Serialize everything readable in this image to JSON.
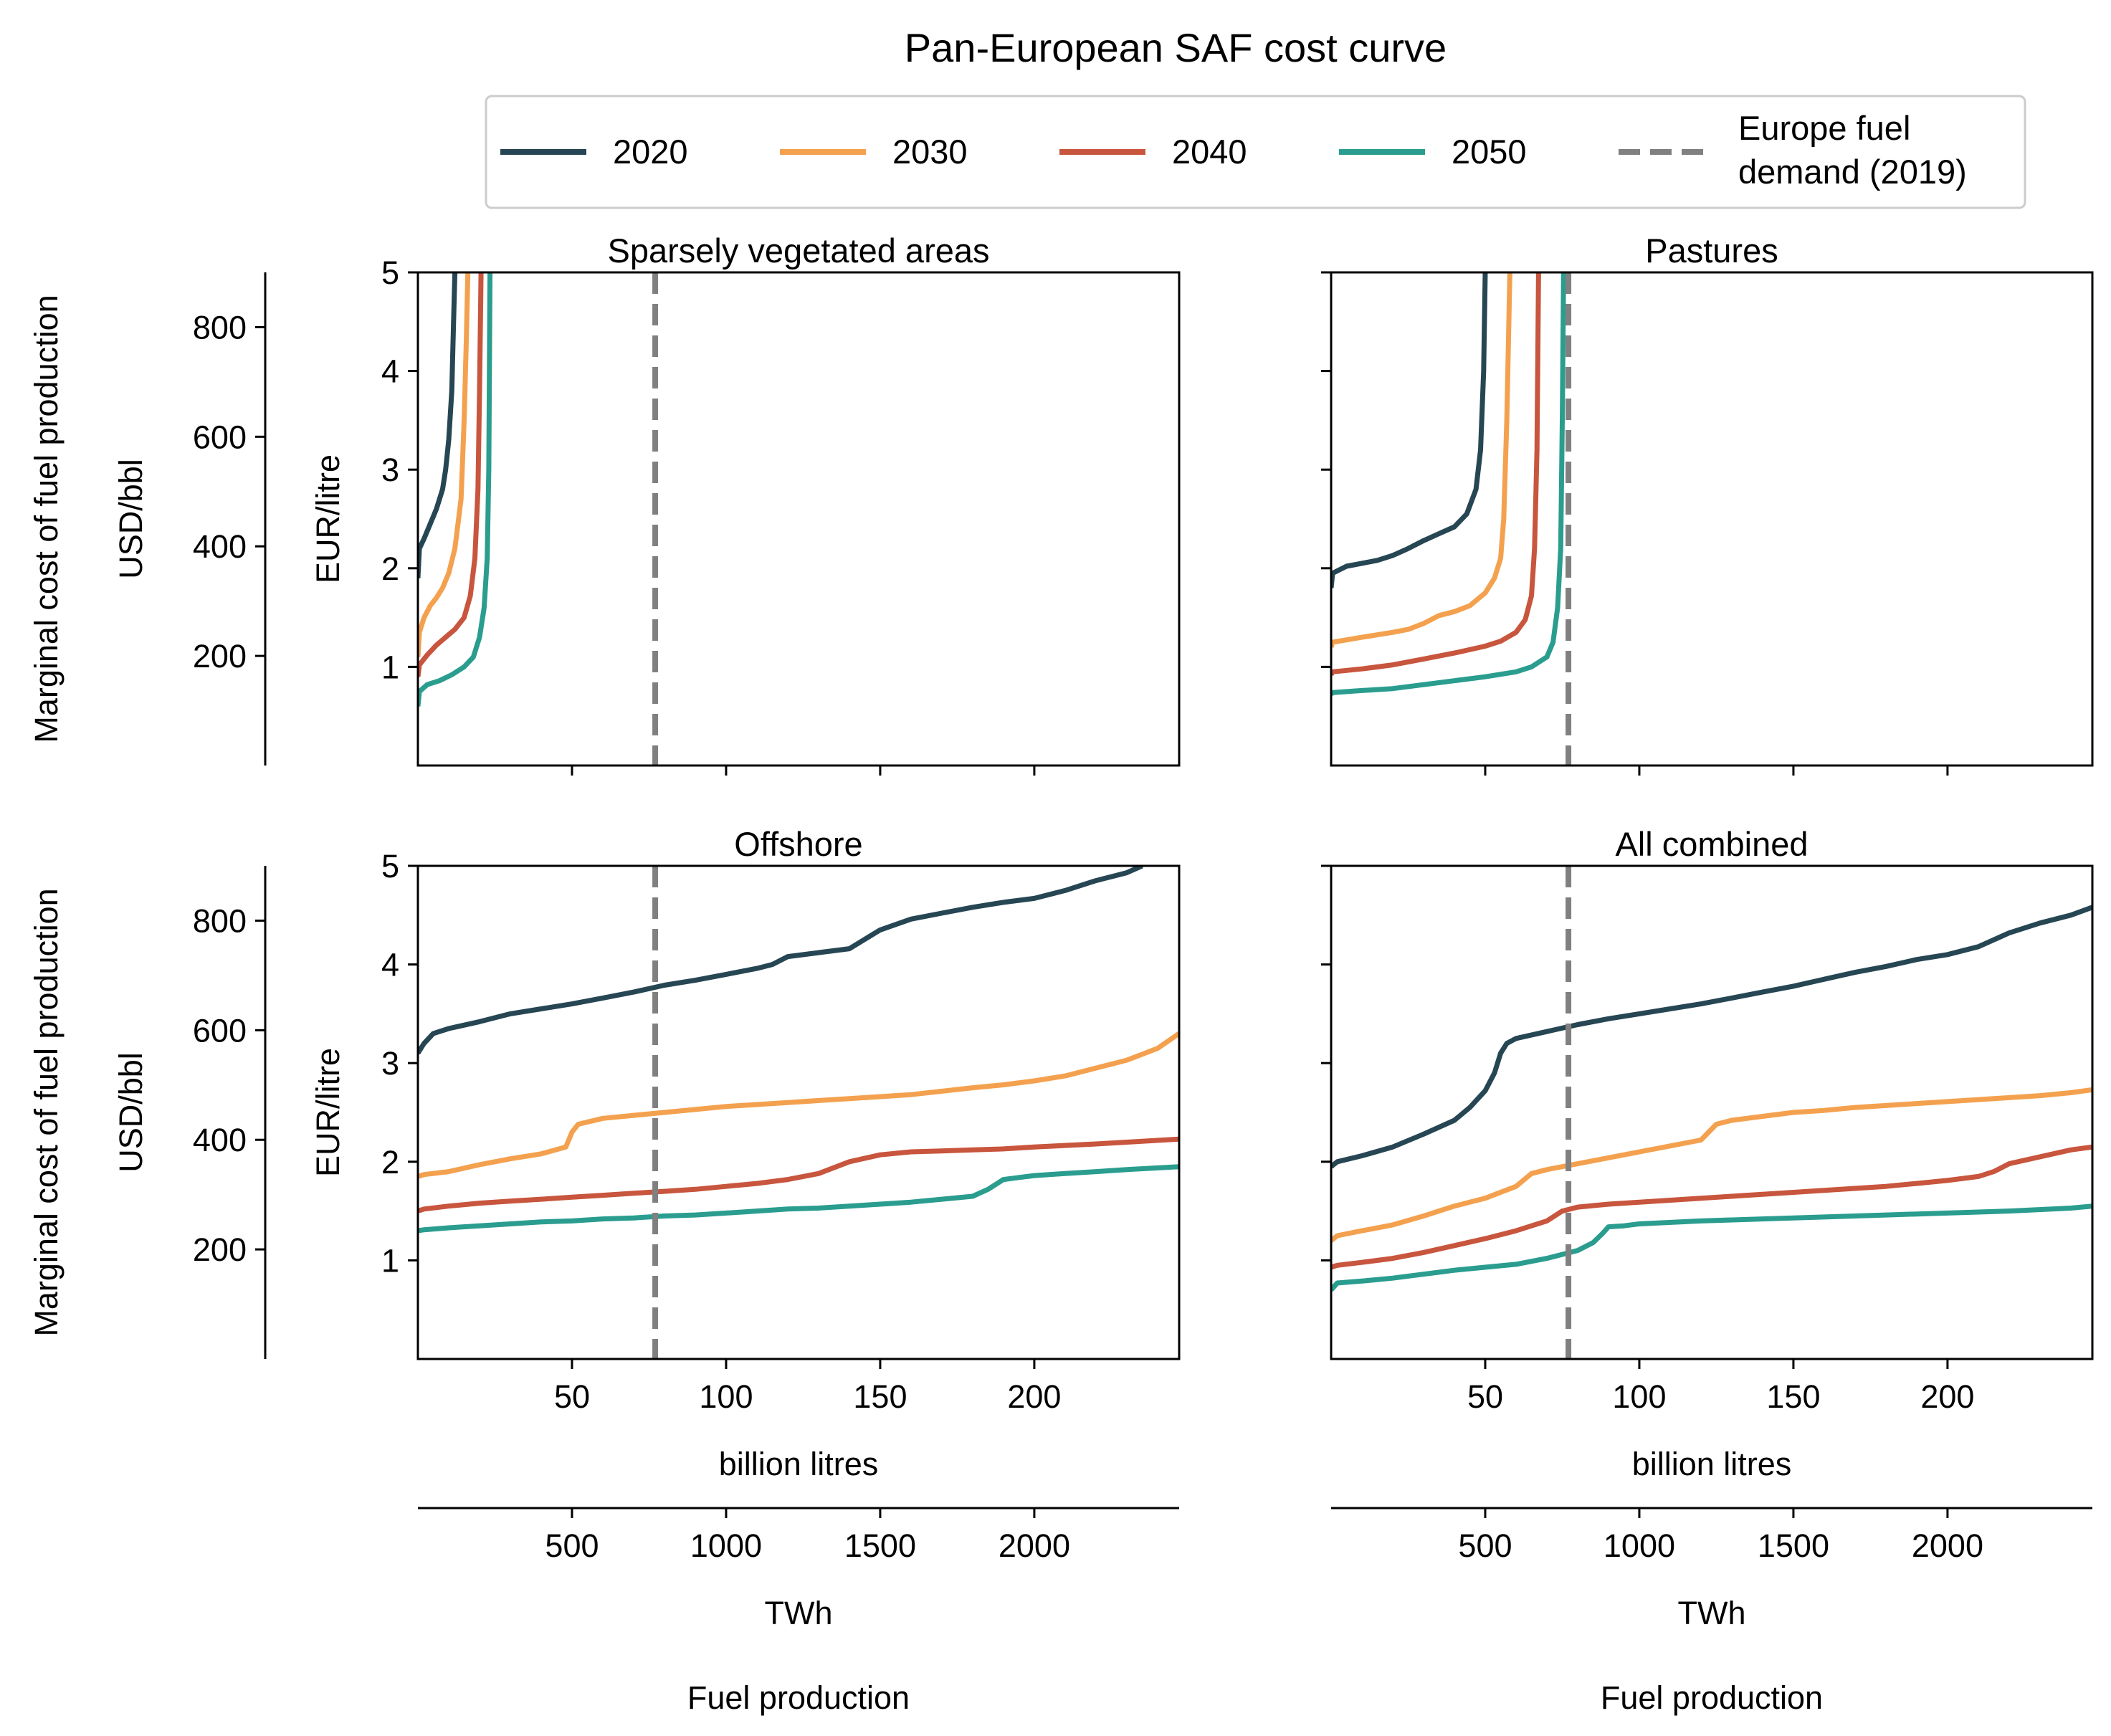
{
  "title": "Pan-European SAF cost curve",
  "colors": {
    "2020": "#264653",
    "2030": "#F4A14F",
    "2040": "#C8553D",
    "2050": "#2A9D8F",
    "demand": "#808080"
  },
  "legend": {
    "entries": [
      {
        "key": "2020",
        "label": "2020",
        "style": "solid"
      },
      {
        "key": "2030",
        "label": "2030",
        "style": "solid"
      },
      {
        "key": "2040",
        "label": "2040",
        "style": "solid"
      },
      {
        "key": "2050",
        "label": "2050",
        "style": "solid"
      },
      {
        "key": "demand",
        "label": [
          "Europe fuel",
          "demand (2019)"
        ],
        "style": "dashed"
      }
    ]
  },
  "labels": {
    "ylabel_outer": "Marginal cost of fuel production",
    "ylabel_usd": "USD/bbl",
    "ylabel_eur": "EUR/litre",
    "xlabel_litres": "billion litres",
    "xlabel_twh": "TWh",
    "xlabel_bottom": "Fuel production"
  },
  "axes": {
    "x_litres": {
      "range": [
        0,
        247
      ],
      "ticks": [
        50,
        100,
        150,
        200
      ]
    },
    "x_twh": {
      "ticks": [
        500,
        1000,
        1500,
        2000
      ]
    },
    "y_eur": {
      "range": [
        0,
        5
      ],
      "ticks": [
        1,
        2,
        3,
        4,
        5
      ]
    },
    "y_usd": {
      "range": [
        0,
        900
      ],
      "ticks": [
        200,
        400,
        600,
        800
      ]
    }
  },
  "chart_data": [
    {
      "type": "line",
      "title": "Sparsely vegetated areas",
      "demand_x": 77,
      "series": [
        {
          "name": "2020",
          "x": [
            0,
            0.5,
            2,
            4,
            6,
            8,
            9,
            10,
            11,
            11.5,
            12,
            13
          ],
          "y": [
            1.9,
            2.2,
            2.3,
            2.45,
            2.6,
            2.8,
            3.0,
            3.3,
            3.8,
            4.4,
            5.0,
            5.3
          ]
        },
        {
          "name": "2030",
          "x": [
            0,
            0.5,
            2,
            4,
            6,
            8,
            10,
            12,
            14,
            15,
            15.7,
            16.2,
            17
          ],
          "y": [
            1.1,
            1.35,
            1.5,
            1.62,
            1.7,
            1.8,
            1.95,
            2.2,
            2.7,
            3.5,
            4.3,
            5.0,
            5.3
          ]
        },
        {
          "name": "2040",
          "x": [
            0,
            0.5,
            3,
            6,
            9,
            12,
            15,
            17,
            18.5,
            19.5,
            20,
            20.5,
            21
          ],
          "y": [
            0.9,
            1.02,
            1.12,
            1.22,
            1.3,
            1.38,
            1.5,
            1.72,
            2.1,
            2.8,
            3.8,
            5.0,
            5.3
          ]
        },
        {
          "name": "2050",
          "x": [
            0,
            0.5,
            3,
            7,
            11,
            15,
            18,
            20,
            21.5,
            22.5,
            23,
            23.4,
            24
          ],
          "y": [
            0.6,
            0.75,
            0.82,
            0.86,
            0.92,
            1.0,
            1.1,
            1.3,
            1.6,
            2.1,
            3.0,
            5.0,
            5.3
          ]
        }
      ]
    },
    {
      "type": "line",
      "title": "Pastures",
      "demand_x": 77,
      "series": [
        {
          "name": "2020",
          "x": [
            0,
            0.5,
            5,
            10,
            15,
            20,
            25,
            30,
            35,
            40,
            44,
            47,
            48.5,
            49.5,
            50,
            50.5
          ],
          "y": [
            1.8,
            1.95,
            2.02,
            2.05,
            2.08,
            2.13,
            2.2,
            2.28,
            2.35,
            2.42,
            2.55,
            2.8,
            3.2,
            4.0,
            5.0,
            5.3
          ]
        },
        {
          "name": "2030",
          "x": [
            0,
            0.5,
            10,
            20,
            25,
            30,
            35,
            40,
            45,
            50,
            53,
            55,
            56,
            57,
            58,
            59
          ],
          "y": [
            1.2,
            1.25,
            1.3,
            1.35,
            1.38,
            1.44,
            1.52,
            1.56,
            1.62,
            1.75,
            1.9,
            2.1,
            2.5,
            3.5,
            5.0,
            5.3
          ]
        },
        {
          "name": "2040",
          "x": [
            0,
            0.5,
            10,
            20,
            30,
            40,
            50,
            55,
            60,
            63,
            65,
            66,
            66.8,
            67.3,
            68
          ],
          "y": [
            0.92,
            0.95,
            0.98,
            1.02,
            1.08,
            1.14,
            1.21,
            1.26,
            1.35,
            1.48,
            1.72,
            2.2,
            3.2,
            5.0,
            5.3
          ]
        },
        {
          "name": "2050",
          "x": [
            0,
            0.5,
            10,
            20,
            30,
            40,
            50,
            60,
            65,
            70,
            72,
            73.5,
            74.5,
            75,
            75.5
          ],
          "y": [
            0.72,
            0.74,
            0.76,
            0.78,
            0.82,
            0.86,
            0.9,
            0.95,
            1.0,
            1.1,
            1.25,
            1.6,
            2.2,
            3.5,
            5.2
          ]
        }
      ]
    },
    {
      "type": "line",
      "title": "Offshore",
      "demand_x": 77,
      "series": [
        {
          "name": "2020",
          "x": [
            0,
            2,
            5,
            10,
            20,
            30,
            40,
            50,
            60,
            70,
            80,
            90,
            100,
            110,
            115,
            120,
            130,
            140,
            150,
            160,
            170,
            180,
            190,
            200,
            210,
            220,
            230,
            235
          ],
          "y": [
            3.1,
            3.2,
            3.3,
            3.35,
            3.42,
            3.5,
            3.55,
            3.6,
            3.66,
            3.72,
            3.79,
            3.84,
            3.9,
            3.96,
            4.0,
            4.08,
            4.12,
            4.16,
            4.35,
            4.46,
            4.52,
            4.58,
            4.63,
            4.67,
            4.75,
            4.85,
            4.93,
            5.0
          ]
        },
        {
          "name": "2030",
          "x": [
            0,
            2,
            10,
            20,
            30,
            40,
            48,
            50,
            52,
            60,
            70,
            80,
            90,
            100,
            120,
            140,
            160,
            180,
            190,
            200,
            210,
            220,
            230,
            240,
            247
          ],
          "y": [
            1.85,
            1.87,
            1.9,
            1.97,
            2.03,
            2.08,
            2.15,
            2.3,
            2.38,
            2.44,
            2.47,
            2.5,
            2.53,
            2.56,
            2.6,
            2.64,
            2.68,
            2.75,
            2.78,
            2.82,
            2.87,
            2.95,
            3.03,
            3.15,
            3.3
          ]
        },
        {
          "name": "2040",
          "x": [
            0,
            2,
            10,
            20,
            30,
            40,
            50,
            60,
            70,
            80,
            90,
            100,
            110,
            120,
            130,
            140,
            150,
            160,
            170,
            180,
            190,
            200,
            220,
            247
          ],
          "y": [
            1.5,
            1.52,
            1.55,
            1.58,
            1.6,
            1.62,
            1.64,
            1.66,
            1.68,
            1.7,
            1.72,
            1.75,
            1.78,
            1.82,
            1.88,
            2.0,
            2.07,
            2.1,
            2.11,
            2.12,
            2.13,
            2.15,
            2.18,
            2.23
          ]
        },
        {
          "name": "2050",
          "x": [
            0,
            2,
            10,
            20,
            30,
            40,
            50,
            60,
            70,
            80,
            90,
            100,
            110,
            120,
            130,
            140,
            150,
            160,
            170,
            180,
            185,
            190,
            195,
            200,
            210,
            220,
            230,
            247
          ],
          "y": [
            1.3,
            1.31,
            1.33,
            1.35,
            1.37,
            1.39,
            1.4,
            1.42,
            1.43,
            1.45,
            1.46,
            1.48,
            1.5,
            1.52,
            1.53,
            1.55,
            1.57,
            1.59,
            1.62,
            1.65,
            1.72,
            1.82,
            1.84,
            1.86,
            1.88,
            1.9,
            1.92,
            1.95
          ]
        }
      ]
    },
    {
      "type": "line",
      "title": "All combined",
      "demand_x": 77,
      "series": [
        {
          "name": "2020",
          "x": [
            0,
            2,
            10,
            20,
            30,
            40,
            45,
            50,
            53,
            55,
            57,
            60,
            70,
            80,
            90,
            100,
            110,
            120,
            130,
            140,
            150,
            160,
            170,
            180,
            190,
            200,
            210,
            220,
            230,
            240,
            247
          ],
          "y": [
            1.95,
            2.0,
            2.06,
            2.15,
            2.28,
            2.42,
            2.55,
            2.72,
            2.9,
            3.1,
            3.2,
            3.25,
            3.32,
            3.39,
            3.45,
            3.5,
            3.55,
            3.6,
            3.66,
            3.72,
            3.78,
            3.85,
            3.92,
            3.98,
            4.05,
            4.1,
            4.18,
            4.32,
            4.42,
            4.5,
            4.58
          ]
        },
        {
          "name": "2030",
          "x": [
            0,
            2,
            10,
            20,
            30,
            40,
            50,
            60,
            65,
            70,
            80,
            90,
            100,
            110,
            120,
            125,
            130,
            140,
            150,
            160,
            170,
            180,
            190,
            200,
            210,
            220,
            230,
            240,
            247
          ],
          "y": [
            1.2,
            1.25,
            1.3,
            1.36,
            1.45,
            1.55,
            1.63,
            1.75,
            1.88,
            1.92,
            1.98,
            2.04,
            2.1,
            2.16,
            2.22,
            2.38,
            2.42,
            2.46,
            2.5,
            2.52,
            2.55,
            2.57,
            2.59,
            2.61,
            2.63,
            2.65,
            2.67,
            2.7,
            2.73
          ]
        },
        {
          "name": "2040",
          "x": [
            0,
            2,
            10,
            20,
            30,
            40,
            50,
            60,
            70,
            75,
            80,
            90,
            100,
            110,
            120,
            130,
            140,
            150,
            160,
            170,
            180,
            190,
            200,
            210,
            215,
            220,
            230,
            240,
            247
          ],
          "y": [
            0.93,
            0.95,
            0.98,
            1.02,
            1.08,
            1.15,
            1.22,
            1.3,
            1.4,
            1.5,
            1.54,
            1.57,
            1.59,
            1.61,
            1.63,
            1.65,
            1.67,
            1.69,
            1.71,
            1.73,
            1.75,
            1.78,
            1.81,
            1.85,
            1.9,
            1.98,
            2.05,
            2.12,
            2.15
          ]
        },
        {
          "name": "2050",
          "x": [
            0,
            2,
            10,
            20,
            30,
            40,
            50,
            60,
            70,
            80,
            85,
            88,
            90,
            95,
            100,
            120,
            140,
            160,
            180,
            200,
            220,
            240,
            247
          ],
          "y": [
            0.7,
            0.77,
            0.79,
            0.82,
            0.86,
            0.9,
            0.93,
            0.96,
            1.02,
            1.1,
            1.18,
            1.27,
            1.34,
            1.35,
            1.37,
            1.4,
            1.42,
            1.44,
            1.46,
            1.48,
            1.5,
            1.53,
            1.55
          ]
        }
      ]
    }
  ]
}
